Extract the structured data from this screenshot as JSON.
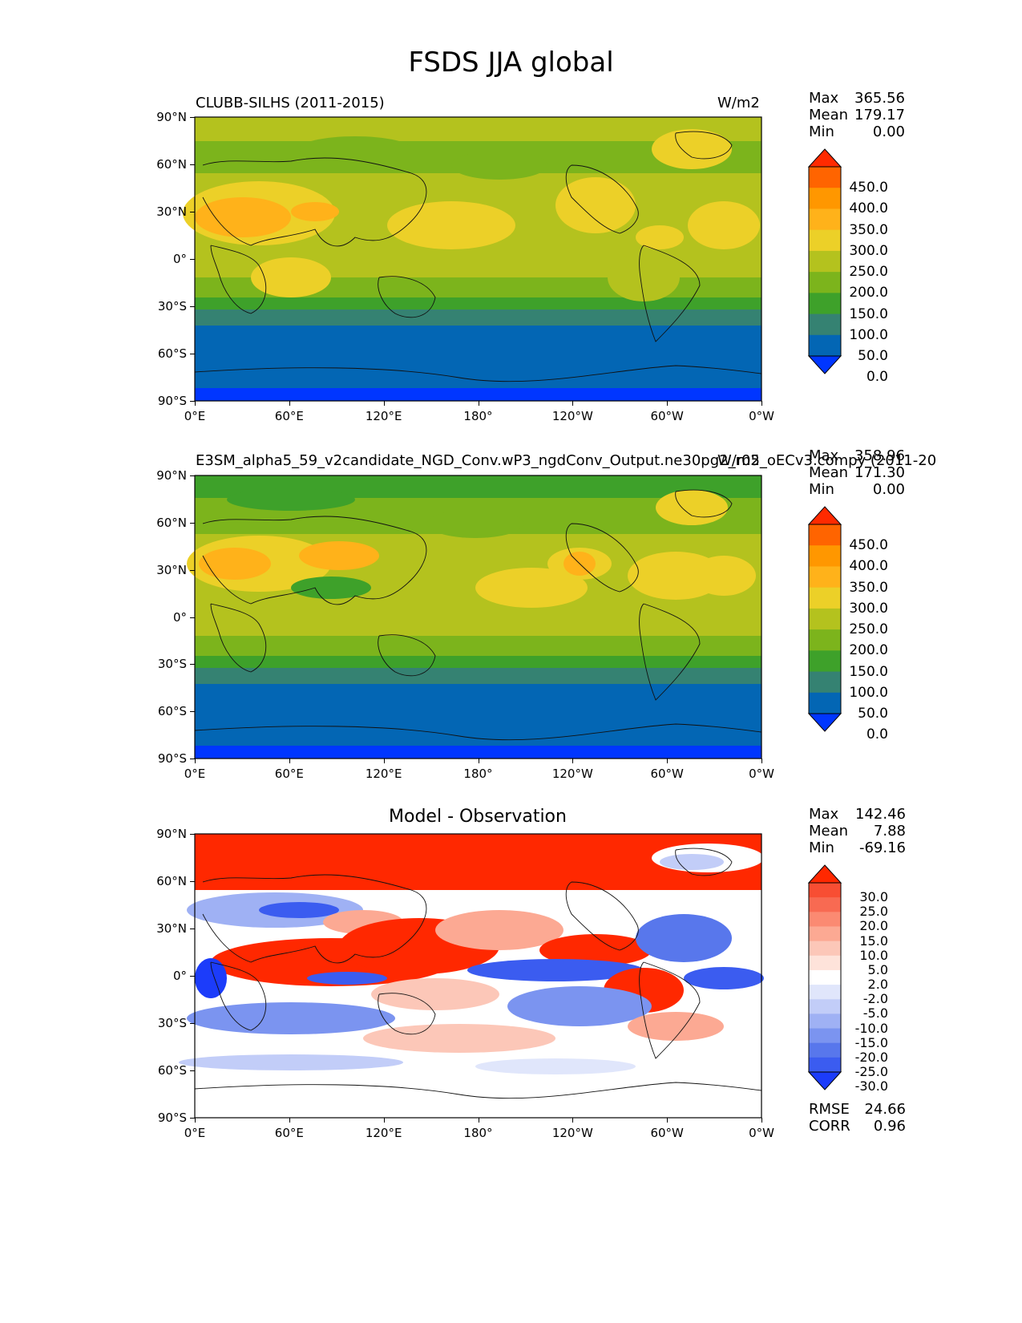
{
  "title": "FSDS JJA global",
  "lat_ticks": [
    "90°N",
    "60°N",
    "30°N",
    "0°",
    "30°S",
    "60°S",
    "90°S"
  ],
  "lon_ticks": [
    "0°E",
    "60°E",
    "120°E",
    "180°",
    "120°W",
    "60°W",
    "0°W"
  ],
  "panels": [
    {
      "left_title": "CLUBB-SILHS (2011-2015)",
      "right_title": "W/m2",
      "center_title": "",
      "stats": [
        {
          "label": "Max",
          "value": "365.56"
        },
        {
          "label": "Mean",
          "value": "179.17"
        },
        {
          "label": "Min",
          "value": "0.00"
        }
      ],
      "colorbar_levels": [
        "450.0",
        "400.0",
        "350.0",
        "300.0",
        "250.0",
        "200.0",
        "150.0",
        "100.0",
        "50.0",
        "0.0"
      ],
      "colorbar_colors": [
        "#ff2a00",
        "#ff6400",
        "#ff9700",
        "#ffb21a",
        "#ecd028",
        "#b4c21e",
        "#7cb41c",
        "#3ea12a",
        "#358272",
        "#0366b4",
        "#0036ff"
      ]
    },
    {
      "left_title": "E3SM_alpha5_59_v2candidate_NGD_Conv.wP3_ngdConv_Output.ne30pg2_r05_oECv3.compy (2011-20",
      "right_title": "W/m2",
      "center_title": "",
      "stats": [
        {
          "label": "Max",
          "value": "358.96"
        },
        {
          "label": "Mean",
          "value": "171.30"
        },
        {
          "label": "Min",
          "value": "0.00"
        }
      ],
      "colorbar_levels": [
        "450.0",
        "400.0",
        "350.0",
        "300.0",
        "250.0",
        "200.0",
        "150.0",
        "100.0",
        "50.0",
        "0.0"
      ],
      "colorbar_colors": [
        "#ff2a00",
        "#ff6400",
        "#ff9700",
        "#ffb21a",
        "#ecd028",
        "#b4c21e",
        "#7cb41c",
        "#3ea12a",
        "#358272",
        "#0366b4",
        "#0036ff"
      ]
    },
    {
      "left_title": "",
      "right_title": "",
      "center_title": "Model - Observation",
      "stats": [
        {
          "label": "Max",
          "value": "142.46"
        },
        {
          "label": "Mean",
          "value": "7.88"
        },
        {
          "label": "Min",
          "value": "-69.16"
        }
      ],
      "colorbar_levels": [
        "30.0",
        "25.0",
        "20.0",
        "15.0",
        "10.0",
        "5.0",
        "2.0",
        "-2.0",
        "-5.0",
        "-10.0",
        "-15.0",
        "-20.0",
        "-25.0",
        "-30.0"
      ],
      "colorbar_colors": [
        "#ff2800",
        "#f84e33",
        "#f86a52",
        "#fb8a72",
        "#fca993",
        "#fcc7b8",
        "#fee3da",
        "#ffffff",
        "#e0e6fb",
        "#c2cdf8",
        "#9fb1f4",
        "#7b94f0",
        "#5877ec",
        "#3b5cf0",
        "#1c3cfa"
      ],
      "bottom_stats": [
        {
          "label": "RMSE",
          "value": "24.66"
        },
        {
          "label": "CORR",
          "value": "0.96"
        }
      ]
    }
  ]
}
